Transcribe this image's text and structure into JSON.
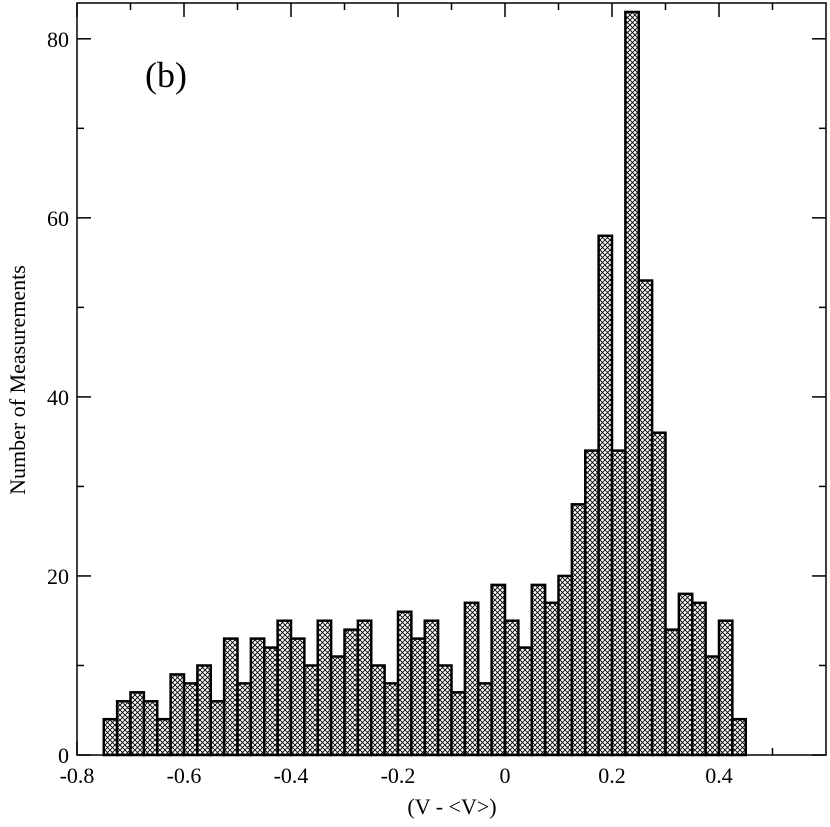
{
  "chart_data": {
    "type": "bar",
    "title": "",
    "panel_label": "(b)",
    "xlabel": "(V - <V>)",
    "ylabel": "Number of Measurements",
    "xlim": [
      -0.8,
      0.6
    ],
    "ylim": [
      0,
      84
    ],
    "x_ticks": [
      -0.8,
      -0.6,
      -0.4,
      -0.2,
      0,
      0.2,
      0.4
    ],
    "x_tick_labels": [
      "-0.8",
      "-0.6",
      "-0.4",
      "-0.2",
      "0",
      "0.2",
      "0.4"
    ],
    "y_ticks": [
      0,
      20,
      40,
      60,
      80
    ],
    "y_tick_labels": [
      "0",
      "20",
      "40",
      "60",
      "80"
    ],
    "bin_width": 0.025,
    "bin_start": -0.775,
    "values": [
      0,
      4,
      6,
      7,
      6,
      4,
      9,
      8,
      10,
      6,
      13,
      8,
      13,
      12,
      15,
      13,
      10,
      15,
      11,
      14,
      15,
      10,
      8,
      16,
      13,
      15,
      10,
      7,
      17,
      8,
      19,
      15,
      12,
      19,
      17,
      20,
      28,
      34,
      58,
      34,
      83,
      53,
      36,
      14,
      18,
      17,
      11,
      15,
      4,
      0,
      0
    ],
    "fill_pattern": "crosshatch",
    "grid": false,
    "legend": "none"
  }
}
